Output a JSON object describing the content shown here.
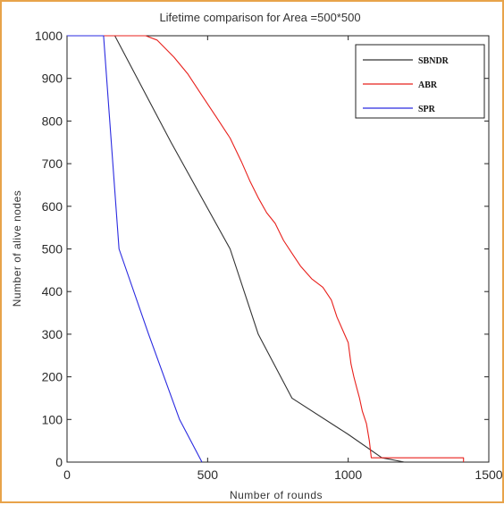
{
  "chart_data": {
    "type": "line",
    "title": "Lifetime comparison for Area =500*500",
    "xlabel": "Number of rounds",
    "ylabel": "Number of alive nodes",
    "xlim": [
      0,
      1500
    ],
    "ylim": [
      0,
      1000
    ],
    "xticks": [
      0,
      500,
      1000,
      1500
    ],
    "yticks": [
      0,
      100,
      200,
      300,
      400,
      500,
      600,
      700,
      800,
      900,
      1000
    ],
    "grid": false,
    "legend_position": "top-right",
    "series": [
      {
        "name": "SBNDR",
        "color": "#333333",
        "points": [
          [
            0,
            1000
          ],
          [
            170,
            1000
          ],
          [
            370,
            750
          ],
          [
            580,
            500
          ],
          [
            680,
            300
          ],
          [
            800,
            150
          ],
          [
            1000,
            65
          ],
          [
            1120,
            10
          ],
          [
            1200,
            0
          ]
        ]
      },
      {
        "name": "ABR",
        "color": "#e8201c",
        "points": [
          [
            0,
            1000
          ],
          [
            280,
            1000
          ],
          [
            320,
            990
          ],
          [
            380,
            950
          ],
          [
            430,
            910
          ],
          [
            480,
            860
          ],
          [
            530,
            810
          ],
          [
            580,
            760
          ],
          [
            620,
            705
          ],
          [
            650,
            660
          ],
          [
            680,
            620
          ],
          [
            710,
            585
          ],
          [
            740,
            560
          ],
          [
            770,
            520
          ],
          [
            800,
            490
          ],
          [
            830,
            460
          ],
          [
            870,
            430
          ],
          [
            910,
            410
          ],
          [
            940,
            380
          ],
          [
            960,
            340
          ],
          [
            980,
            310
          ],
          [
            1000,
            280
          ],
          [
            1010,
            230
          ],
          [
            1020,
            200
          ],
          [
            1030,
            175
          ],
          [
            1040,
            150
          ],
          [
            1050,
            120
          ],
          [
            1065,
            90
          ],
          [
            1075,
            50
          ],
          [
            1082,
            10
          ],
          [
            1410,
            10
          ],
          [
            1410,
            0
          ]
        ]
      },
      {
        "name": "SPR",
        "color": "#2a2ae0",
        "points": [
          [
            0,
            1000
          ],
          [
            130,
            1000
          ],
          [
            185,
            500
          ],
          [
            290,
            300
          ],
          [
            400,
            100
          ],
          [
            480,
            0
          ]
        ]
      }
    ]
  }
}
